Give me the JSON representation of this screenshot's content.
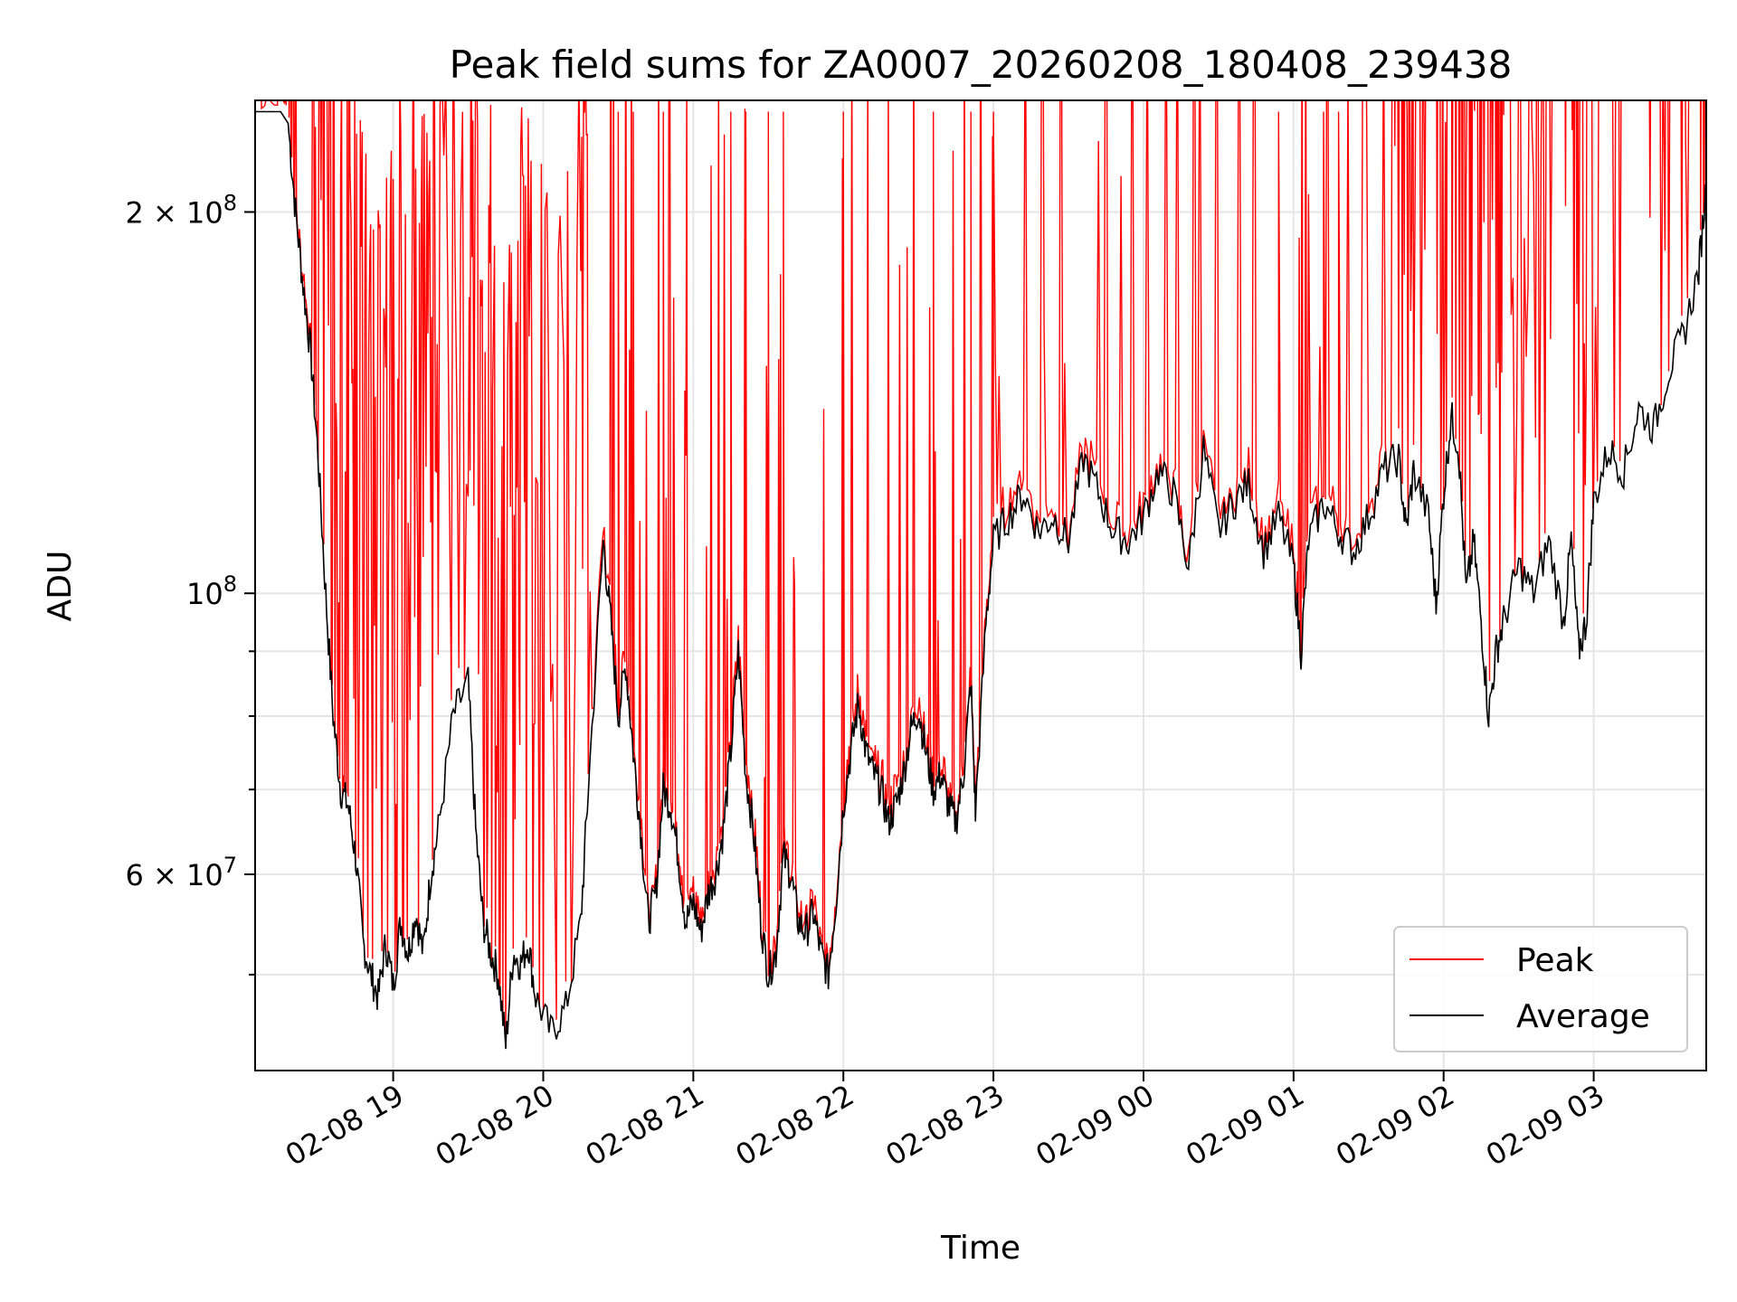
{
  "chart_data": {
    "type": "line",
    "title": "Peak field sums for ZA0007_20260208_180408_239438",
    "xlabel": "Time",
    "ylabel": "ADU",
    "x_tick_labels": [
      "02-08 19",
      "02-08 20",
      "02-08 21",
      "02-08 22",
      "02-08 23",
      "02-09 00",
      "02-09 01",
      "02-09 02",
      "02-09 03"
    ],
    "x_tick_hours": [
      19,
      20,
      21,
      22,
      23,
      24,
      25,
      26,
      27
    ],
    "x_range_hours": [
      18.08,
      27.75
    ],
    "y_scale": "log",
    "y_range": [
      42000000,
      245000000
    ],
    "y_tick_labels": [
      {
        "value": 60000000,
        "mantissa": "6",
        "exp": "7"
      },
      {
        "value": 100000000,
        "mantissa": "",
        "exp": "8"
      },
      {
        "value": 200000000,
        "mantissa": "2",
        "exp": "8"
      }
    ],
    "y_minor_ticks": [
      50000000,
      70000000,
      80000000,
      90000000,
      300000000
    ],
    "grid": true,
    "legend_position": "lower-right",
    "series": [
      {
        "name": "Average",
        "color": "#000000",
        "points": [
          [
            18.08,
            240000000
          ],
          [
            18.25,
            240000000
          ],
          [
            18.3,
            235000000
          ],
          [
            18.35,
            200000000
          ],
          [
            18.4,
            175000000
          ],
          [
            18.45,
            155000000
          ],
          [
            18.5,
            128000000
          ],
          [
            18.55,
            100000000
          ],
          [
            18.6,
            80000000
          ],
          [
            18.65,
            70000000
          ],
          [
            18.7,
            68000000
          ],
          [
            18.75,
            62000000
          ],
          [
            18.8,
            53000000
          ],
          [
            18.85,
            50000000
          ],
          [
            18.9,
            48000000
          ],
          [
            18.95,
            53000000
          ],
          [
            19.0,
            49000000
          ],
          [
            19.05,
            55000000
          ],
          [
            19.1,
            52000000
          ],
          [
            19.15,
            56000000
          ],
          [
            19.2,
            52000000
          ],
          [
            19.25,
            60000000
          ],
          [
            19.3,
            65000000
          ],
          [
            19.4,
            80000000
          ],
          [
            19.5,
            85000000
          ],
          [
            19.55,
            65000000
          ],
          [
            19.6,
            55000000
          ],
          [
            19.65,
            52000000
          ],
          [
            19.7,
            50000000
          ],
          [
            19.75,
            44000000
          ],
          [
            19.8,
            52000000
          ],
          [
            19.85,
            51000000
          ],
          [
            19.9,
            53000000
          ],
          [
            19.95,
            48000000
          ],
          [
            20.05,
            45000000
          ],
          [
            20.15,
            47000000
          ],
          [
            20.25,
            55000000
          ],
          [
            20.3,
            70000000
          ],
          [
            20.4,
            110000000
          ],
          [
            20.45,
            95000000
          ],
          [
            20.5,
            80000000
          ],
          [
            20.55,
            88000000
          ],
          [
            20.6,
            75000000
          ],
          [
            20.65,
            65000000
          ],
          [
            20.7,
            55000000
          ],
          [
            20.75,
            58000000
          ],
          [
            20.8,
            70000000
          ],
          [
            20.85,
            68000000
          ],
          [
            20.9,
            62000000
          ],
          [
            20.95,
            55000000
          ],
          [
            21.0,
            57000000
          ],
          [
            21.05,
            54000000
          ],
          [
            21.1,
            58000000
          ],
          [
            21.15,
            60000000
          ],
          [
            21.2,
            65000000
          ],
          [
            21.25,
            75000000
          ],
          [
            21.3,
            90000000
          ],
          [
            21.35,
            72000000
          ],
          [
            21.4,
            65000000
          ],
          [
            21.45,
            55000000
          ],
          [
            21.5,
            50000000
          ],
          [
            21.55,
            52000000
          ],
          [
            21.6,
            62000000
          ],
          [
            21.65,
            60000000
          ],
          [
            21.7,
            55000000
          ],
          [
            21.75,
            54000000
          ],
          [
            21.8,
            56000000
          ],
          [
            21.85,
            52000000
          ],
          [
            21.9,
            50000000
          ],
          [
            21.95,
            57000000
          ],
          [
            22.0,
            68000000
          ],
          [
            22.05,
            75000000
          ],
          [
            22.1,
            82000000
          ],
          [
            22.15,
            75000000
          ],
          [
            22.2,
            72000000
          ],
          [
            22.25,
            70000000
          ],
          [
            22.3,
            66000000
          ],
          [
            22.35,
            68000000
          ],
          [
            22.4,
            72000000
          ],
          [
            22.45,
            78000000
          ],
          [
            22.5,
            81000000
          ],
          [
            22.55,
            75000000
          ],
          [
            22.6,
            70000000
          ],
          [
            22.65,
            72000000
          ],
          [
            22.7,
            68000000
          ],
          [
            22.75,
            66000000
          ],
          [
            22.8,
            72000000
          ],
          [
            22.85,
            85000000
          ],
          [
            22.88,
            67000000
          ],
          [
            22.95,
            95000000
          ],
          [
            23.0,
            110000000
          ],
          [
            23.1,
            115000000
          ],
          [
            23.2,
            120000000
          ],
          [
            23.3,
            112000000
          ],
          [
            23.4,
            115000000
          ],
          [
            23.5,
            110000000
          ],
          [
            23.6,
            128000000
          ],
          [
            23.7,
            120000000
          ],
          [
            23.8,
            112000000
          ],
          [
            23.9,
            110000000
          ],
          [
            24.0,
            115000000
          ],
          [
            24.1,
            125000000
          ],
          [
            24.2,
            120000000
          ],
          [
            24.3,
            105000000
          ],
          [
            24.4,
            130000000
          ],
          [
            24.5,
            112000000
          ],
          [
            24.6,
            118000000
          ],
          [
            24.7,
            122000000
          ],
          [
            24.8,
            108000000
          ],
          [
            24.9,
            115000000
          ],
          [
            25.0,
            105000000
          ],
          [
            25.05,
            90000000
          ],
          [
            25.1,
            110000000
          ],
          [
            25.2,
            118000000
          ],
          [
            25.3,
            112000000
          ],
          [
            25.4,
            108000000
          ],
          [
            25.5,
            115000000
          ],
          [
            25.6,
            125000000
          ],
          [
            25.7,
            128000000
          ],
          [
            25.75,
            112000000
          ],
          [
            25.8,
            125000000
          ],
          [
            25.9,
            115000000
          ],
          [
            25.95,
            98000000
          ],
          [
            26.0,
            120000000
          ],
          [
            26.05,
            138000000
          ],
          [
            26.1,
            130000000
          ],
          [
            26.15,
            100000000
          ],
          [
            26.2,
            110000000
          ],
          [
            26.25,
            95000000
          ],
          [
            26.3,
            80000000
          ],
          [
            26.35,
            90000000
          ],
          [
            26.4,
            95000000
          ],
          [
            26.5,
            105000000
          ],
          [
            26.6,
            100000000
          ],
          [
            26.7,
            110000000
          ],
          [
            26.8,
            95000000
          ],
          [
            26.85,
            110000000
          ],
          [
            26.9,
            90000000
          ],
          [
            26.95,
            95000000
          ],
          [
            27.0,
            118000000
          ],
          [
            27.1,
            130000000
          ],
          [
            27.2,
            125000000
          ],
          [
            27.3,
            140000000
          ],
          [
            27.4,
            135000000
          ],
          [
            27.5,
            150000000
          ],
          [
            27.6,
            160000000
          ],
          [
            27.7,
            180000000
          ],
          [
            27.75,
            210000000
          ]
        ]
      },
      {
        "name": "Peak",
        "color": "#ff0000",
        "points": []
      }
    ]
  }
}
